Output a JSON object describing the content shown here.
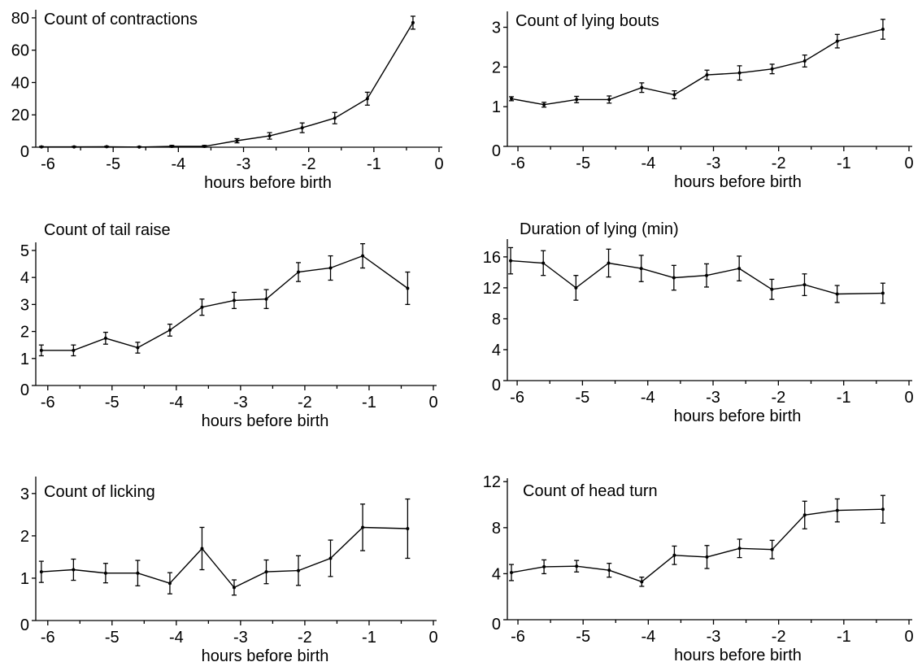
{
  "chart_data": [
    {
      "type": "line",
      "title": "Count of contractions",
      "xlabel": "hours before birth",
      "ylabel": "",
      "xlim": [
        -6.25,
        0
      ],
      "ylim": [
        0,
        85
      ],
      "xticks": [
        -6,
        -5,
        -4,
        -3,
        -2,
        -1,
        0
      ],
      "yticks": [
        0,
        20,
        40,
        60,
        80
      ],
      "x": [
        -6.1,
        -5.6,
        -5.1,
        -4.6,
        -4.1,
        -3.6,
        -3.1,
        -2.6,
        -2.1,
        -1.6,
        -1.1,
        -0.4
      ],
      "values": [
        0.2,
        0.2,
        0.3,
        0.1,
        0.5,
        0.5,
        4,
        7,
        12,
        18,
        30,
        77
      ],
      "errors": [
        0.3,
        0.3,
        0.3,
        0.3,
        0.6,
        0.6,
        1.3,
        2,
        3,
        3.5,
        4,
        4
      ]
    },
    {
      "type": "line",
      "title": "Count of lying bouts",
      "xlabel": "hours before birth",
      "ylabel": "",
      "xlim": [
        -6.25,
        0
      ],
      "ylim": [
        0,
        3.4
      ],
      "xticks": [
        -6,
        -5,
        -4,
        -3,
        -2,
        -1,
        0
      ],
      "yticks": [
        0,
        1,
        2,
        3
      ],
      "x": [
        -6.1,
        -5.6,
        -5.1,
        -4.6,
        -4.1,
        -3.6,
        -3.1,
        -2.6,
        -2.1,
        -1.6,
        -1.1,
        -0.4
      ],
      "values": [
        1.2,
        1.05,
        1.18,
        1.18,
        1.48,
        1.3,
        1.8,
        1.85,
        1.95,
        2.15,
        2.65,
        2.95
      ],
      "errors": [
        0.05,
        0.06,
        0.08,
        0.09,
        0.12,
        0.1,
        0.12,
        0.18,
        0.12,
        0.15,
        0.17,
        0.25
      ]
    },
    {
      "type": "line",
      "title": "Count of tail raise",
      "xlabel": "hours before birth",
      "ylabel": "",
      "xlim": [
        -6.25,
        0
      ],
      "ylim": [
        0,
        5.3
      ],
      "xticks": [
        -6,
        -5,
        -4,
        -3,
        -2,
        -1,
        0
      ],
      "yticks": [
        0,
        1,
        2,
        3,
        4,
        5
      ],
      "x": [
        -6.1,
        -5.6,
        -5.1,
        -4.6,
        -4.1,
        -3.6,
        -3.1,
        -2.6,
        -2.1,
        -1.6,
        -1.1,
        -0.4
      ],
      "values": [
        1.3,
        1.3,
        1.75,
        1.4,
        2.05,
        2.9,
        3.15,
        3.2,
        4.2,
        4.35,
        4.8,
        3.6
      ],
      "errors": [
        0.2,
        0.2,
        0.22,
        0.2,
        0.22,
        0.3,
        0.3,
        0.35,
        0.35,
        0.45,
        0.45,
        0.6
      ]
    },
    {
      "type": "line",
      "title": "Duration of lying (min)",
      "xlabel": "hours before birth",
      "ylabel": "",
      "xlim": [
        -6.25,
        0
      ],
      "ylim": [
        0,
        18.3
      ],
      "xticks": [
        -6,
        -5,
        -4,
        -3,
        -2,
        -1,
        0
      ],
      "yticks": [
        0,
        4,
        8,
        12,
        16
      ],
      "x": [
        -6.1,
        -5.6,
        -5.1,
        -4.6,
        -4.1,
        -3.6,
        -3.1,
        -2.6,
        -2.1,
        -1.6,
        -1.1,
        -0.4
      ],
      "values": [
        15.5,
        15.2,
        12,
        15.2,
        14.5,
        13.3,
        13.6,
        14.5,
        11.8,
        12.4,
        11.2,
        11.3
      ],
      "errors": [
        1.7,
        1.6,
        1.6,
        1.8,
        1.7,
        1.6,
        1.5,
        1.6,
        1.3,
        1.4,
        1.1,
        1.3
      ]
    },
    {
      "type": "line",
      "title": "Count of licking",
      "xlabel": "hours before birth",
      "ylabel": "",
      "xlim": [
        -6.25,
        0
      ],
      "ylim": [
        0,
        3.4
      ],
      "xticks": [
        -6,
        -5,
        -4,
        -3,
        -2,
        -1,
        0
      ],
      "yticks": [
        0,
        1,
        2,
        3
      ],
      "x": [
        -6.1,
        -5.6,
        -5.1,
        -4.6,
        -4.1,
        -3.6,
        -3.1,
        -2.6,
        -2.1,
        -1.6,
        -1.1,
        -0.4
      ],
      "values": [
        1.15,
        1.2,
        1.12,
        1.12,
        0.88,
        1.7,
        0.78,
        1.15,
        1.18,
        1.47,
        2.2,
        2.17
      ],
      "errors": [
        0.25,
        0.25,
        0.23,
        0.3,
        0.25,
        0.5,
        0.18,
        0.28,
        0.35,
        0.43,
        0.55,
        0.7
      ]
    },
    {
      "type": "line",
      "title": "Count of head turn",
      "xlabel": "hours before birth",
      "ylabel": "",
      "xlim": [
        -6.25,
        0
      ],
      "ylim": [
        0,
        12.3
      ],
      "xticks": [
        -6,
        -5,
        -4,
        -3,
        -2,
        -1,
        0
      ],
      "yticks": [
        0,
        4,
        8,
        12
      ],
      "x": [
        -6.1,
        -5.6,
        -5.1,
        -4.6,
        -4.1,
        -3.6,
        -3.1,
        -2.6,
        -2.1,
        -1.6,
        -1.1,
        -0.4
      ],
      "values": [
        4.1,
        4.6,
        4.65,
        4.3,
        3.3,
        5.6,
        5.45,
        6.2,
        6.1,
        9.1,
        9.5,
        9.6
      ],
      "errors": [
        0.7,
        0.6,
        0.5,
        0.6,
        0.4,
        0.8,
        1.0,
        0.8,
        0.8,
        1.2,
        1.0,
        1.2
      ]
    }
  ]
}
